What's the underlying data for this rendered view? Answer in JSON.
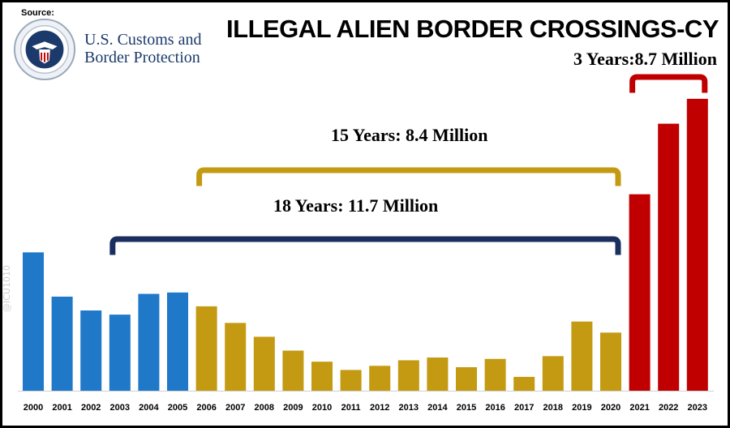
{
  "source": {
    "label": "Source:",
    "agency_line1": "U.S. Customs and",
    "agency_line2": "Border Protection",
    "seal_icon": "cbp-seal-icon"
  },
  "watermark": "@ICU1010",
  "chart_data": {
    "type": "bar",
    "title": "ILLEGAL ALIEN BORDER CROSSINGS-CY",
    "xlabel": "",
    "ylabel": "",
    "categories": [
      "2000",
      "2001",
      "2002",
      "2003",
      "2004",
      "2005",
      "2006",
      "2007",
      "2008",
      "2009",
      "2010",
      "2011",
      "2012",
      "2013",
      "2014",
      "2015",
      "2016",
      "2017",
      "2018",
      "2019",
      "2020",
      "2021",
      "2022",
      "2023"
    ],
    "values": [
      100,
      68,
      58,
      55,
      70,
      71,
      61,
      49,
      39,
      29,
      21,
      15,
      18,
      22,
      24,
      17,
      23,
      10,
      25,
      50,
      42,
      142,
      193,
      211
    ],
    "bar_colors": [
      "#1f78c8",
      "#1f78c8",
      "#1f78c8",
      "#1f78c8",
      "#1f78c8",
      "#1f78c8",
      "#c39a12",
      "#c39a12",
      "#c39a12",
      "#c39a12",
      "#c39a12",
      "#c39a12",
      "#c39a12",
      "#c39a12",
      "#c39a12",
      "#c39a12",
      "#c39a12",
      "#c39a12",
      "#c39a12",
      "#c39a12",
      "#c39a12",
      "#c00000",
      "#c00000",
      "#c00000"
    ],
    "ylim": [
      0,
      225
    ],
    "grid": false,
    "annotations": [
      {
        "text": "3 Years:8.7 Million",
        "from": "2021",
        "to": "2023",
        "color": "#c00000"
      },
      {
        "text": "15 Years: 8.4 Million",
        "from": "2006",
        "to": "2020",
        "color": "#c39a12"
      },
      {
        "text": "18 Years: 11.7 Million",
        "from": "2003",
        "to": "2020",
        "color": "#1b2f5e"
      }
    ]
  }
}
